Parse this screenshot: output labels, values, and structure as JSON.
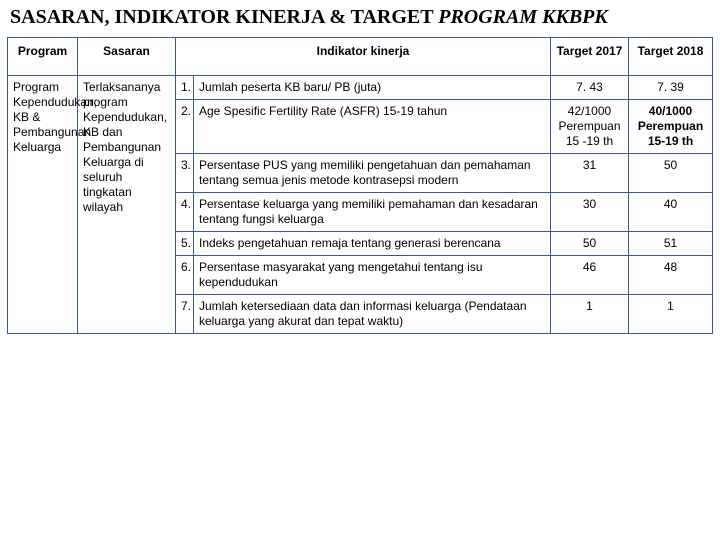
{
  "title": {
    "plain": "SASARAN, INDIKATOR KINERJA & TARGET ",
    "italic": "PROGRAM KKBPK",
    "fontsize": 20
  },
  "headers": {
    "program": "Program",
    "sasaran": "Sasaran",
    "indikator": "Indikator kinerja",
    "t2017": "Target 2017",
    "t2018": "Target 2018"
  },
  "program_text": "Program Kependudukan, KB & Pembangunan Keluarga",
  "sasaran_text": "Terlaksananya program Kependudukan, KB dan Pembangunan Keluarga di seluruh tingkatan wilayah",
  "rows": [
    {
      "n": "1.",
      "ind": "Jumlah peserta KB baru/ PB (juta)",
      "t17": {
        "v1": "7. 43"
      },
      "t18": {
        "v1": "7. 39"
      }
    },
    {
      "n": "2.",
      "ind": "Age Spesific Fertility Rate (ASFR) 15-19 tahun",
      "t17": {
        "v1": "42/1000",
        "v2": "Perempuan",
        "v3": "15 -19 th"
      },
      "t18": {
        "v1": "40/1000",
        "v2": "Perempuan",
        "v3": "15-19 th",
        "bold": true
      }
    },
    {
      "n": "3.",
      "ind": "Persentase PUS yang memiliki pengetahuan dan pemahaman tentang semua jenis metode kontrasepsi modern",
      "t17": {
        "v1": "31"
      },
      "t18": {
        "v1": "50"
      }
    },
    {
      "n": "4.",
      "ind": "Persentase keluarga yang memiliki pemahaman dan kesadaran tentang fungsi keluarga",
      "t17": {
        "v1": "30"
      },
      "t18": {
        "v1": "40"
      }
    },
    {
      "n": "5.",
      "ind": "Indeks pengetahuan remaja tentang generasi berencana",
      "t17": {
        "v1": "50"
      },
      "t18": {
        "v1": "51"
      }
    },
    {
      "n": "6.",
      "ind": "Persentase masyarakat yang mengetahui tentang isu kependudukan",
      "t17": {
        "v1": "46"
      },
      "t18": {
        "v1": "48"
      }
    },
    {
      "n": "7.",
      "ind": "Jumlah ketersediaan data dan informasi keluarga (Pendataan keluarga yang akurat dan tepat waktu)",
      "t17": {
        "v1": "1"
      },
      "t18": {
        "v1": "1"
      }
    }
  ],
  "style": {
    "border_color": "#3a5a8a",
    "header_bg": "#ffffff",
    "font_family": "Arial",
    "title_font_family": "Georgia",
    "base_fontsize": 12
  }
}
